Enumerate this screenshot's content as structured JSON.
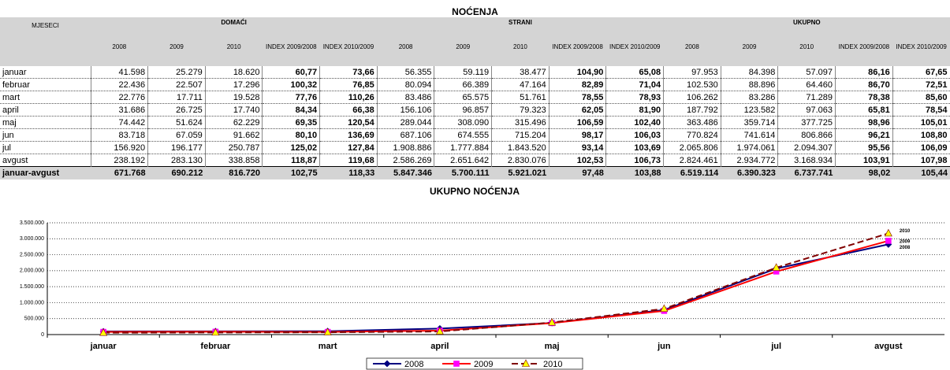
{
  "table": {
    "title": "NOĆENJA",
    "row_header": "MJESECI",
    "groups": [
      "DOMAĆI",
      "STRANI",
      "UKUPNO"
    ],
    "columns": [
      "2008",
      "2009",
      "2010",
      "INDEX\n2009/2008",
      "INDEX\n2010/2009"
    ],
    "rows": [
      [
        "januar",
        "41.598",
        "25.279",
        "18.620",
        "60,77",
        "73,66",
        "56.355",
        "59.119",
        "38.477",
        "104,90",
        "65,08",
        "97.953",
        "84.398",
        "57.097",
        "86,16",
        "67,65"
      ],
      [
        "februar",
        "22.436",
        "22.507",
        "17.296",
        "100,32",
        "76,85",
        "80.094",
        "66.389",
        "47.164",
        "82,89",
        "71,04",
        "102.530",
        "88.896",
        "64.460",
        "86,70",
        "72,51"
      ],
      [
        "mart",
        "22.776",
        "17.711",
        "19.528",
        "77,76",
        "110,26",
        "83.486",
        "65.575",
        "51.761",
        "78,55",
        "78,93",
        "106.262",
        "83.286",
        "71.289",
        "78,38",
        "85,60"
      ],
      [
        "april",
        "31.686",
        "26.725",
        "17.740",
        "84,34",
        "66,38",
        "156.106",
        "96.857",
        "79.323",
        "62,05",
        "81,90",
        "187.792",
        "123.582",
        "97.063",
        "65,81",
        "78,54"
      ],
      [
        "maj",
        "74.442",
        "51.624",
        "62.229",
        "69,35",
        "120,54",
        "289.044",
        "308.090",
        "315.496",
        "106,59",
        "102,40",
        "363.486",
        "359.714",
        "377.725",
        "98,96",
        "105,01"
      ],
      [
        "jun",
        "83.718",
        "67.059",
        "91.662",
        "80,10",
        "136,69",
        "687.106",
        "674.555",
        "715.204",
        "98,17",
        "106,03",
        "770.824",
        "741.614",
        "806.866",
        "96,21",
        "108,80"
      ],
      [
        "jul",
        "156.920",
        "196.177",
        "250.787",
        "125,02",
        "127,84",
        "1.908.886",
        "1.777.884",
        "1.843.520",
        "93,14",
        "103,69",
        "2.065.806",
        "1.974.061",
        "2.094.307",
        "95,56",
        "106,09"
      ],
      [
        "avgust",
        "238.192",
        "283.130",
        "338.858",
        "118,87",
        "119,68",
        "2.586.269",
        "2.651.642",
        "2.830.076",
        "102,53",
        "106,73",
        "2.824.461",
        "2.934.772",
        "3.168.934",
        "103,91",
        "107,98"
      ]
    ],
    "total": [
      "januar-avgust",
      "671.768",
      "690.212",
      "816.720",
      "102,75",
      "118,33",
      "5.847.346",
      "5.700.111",
      "5.921.021",
      "97,48",
      "103,88",
      "6.519.114",
      "6.390.323",
      "6.737.741",
      "98,02",
      "105,44"
    ]
  },
  "chart_data": {
    "type": "line",
    "title": "UKUPNO NOĆENJA",
    "categories": [
      "januar",
      "februar",
      "mart",
      "april",
      "maj",
      "jun",
      "jul",
      "avgust"
    ],
    "series": [
      {
        "name": "2008",
        "color": "#000080",
        "marker": "diamond",
        "marker_color": "#000080",
        "dash": false,
        "values": [
          97953,
          102530,
          106262,
          187792,
          363486,
          770824,
          2065806,
          2824461
        ]
      },
      {
        "name": "2009",
        "color": "#ff0000",
        "marker": "square",
        "marker_color": "#ff00ff",
        "dash": false,
        "values": [
          84398,
          88896,
          83286,
          123582,
          359714,
          741614,
          1974061,
          2934772
        ]
      },
      {
        "name": "2010",
        "color": "#800000",
        "marker": "triangle",
        "marker_color": "#ffff00",
        "dash": true,
        "values": [
          57097,
          64460,
          71289,
          97063,
          377725,
          806866,
          2094307,
          3168934
        ]
      }
    ],
    "ylim": [
      0,
      3500000
    ],
    "yticks": [
      0,
      {
        "value": 500000,
        "label": "500.000"
      },
      {
        "value": 1000000,
        "label": "1.000.000"
      },
      {
        "value": 1500000,
        "label": "1.500.000"
      },
      {
        "value": 2000000,
        "label": "2.000.000"
      },
      {
        "value": 2500000,
        "label": "2.500.000"
      },
      {
        "value": 3000000,
        "label": "3.000.000"
      },
      {
        "value": 3500000,
        "label": "3.500.000"
      }
    ],
    "grid": true,
    "legend": "bottom"
  }
}
